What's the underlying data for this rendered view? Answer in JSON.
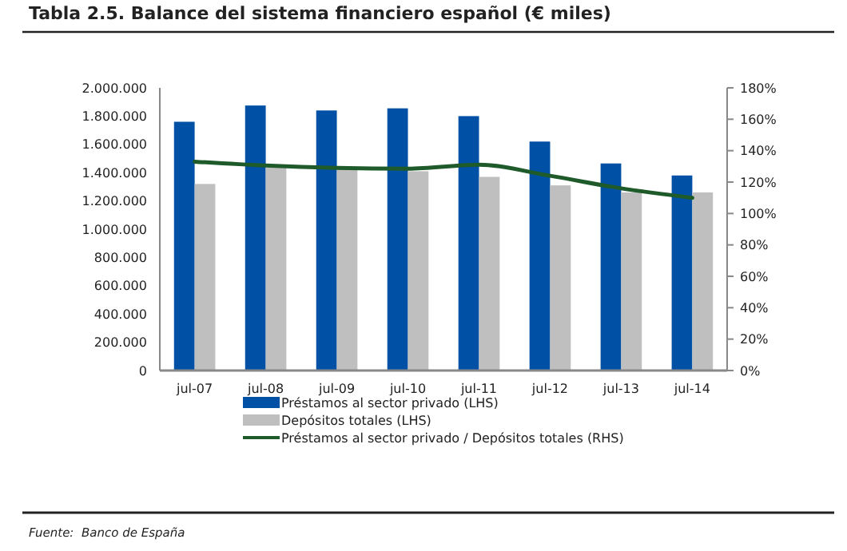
{
  "chart_data": {
    "type": "bar",
    "title": "Tabla 2.5.  Balance del sistema financiero español (€ miles)",
    "categories": [
      "jul-07",
      "jul-08",
      "jul-09",
      "jul-10",
      "jul-11",
      "jul-12",
      "jul-13",
      "jul-14"
    ],
    "series": [
      {
        "name": "Préstamos al sector privado (LHS)",
        "color": "#0051a5",
        "values": [
          1760000,
          1875000,
          1840000,
          1855000,
          1800000,
          1620000,
          1465000,
          1380000
        ]
      },
      {
        "name": "Depósitos totales (LHS)",
        "color": "#bfbfbf",
        "values": [
          1320000,
          1435000,
          1425000,
          1410000,
          1370000,
          1310000,
          1260000,
          1260000
        ]
      },
      {
        "name": "Préstamos al sector privado / Depósitos totales (RHS)",
        "type": "line",
        "axis": "y2",
        "color": "#1e5a2a",
        "values": [
          133,
          130.5,
          129,
          128.5,
          131,
          124,
          116,
          110
        ]
      }
    ],
    "ylim": [
      0,
      2000000
    ],
    "yticks": [
      {
        "value": 0,
        "label": "0"
      },
      {
        "value": 200000,
        "label": "200.000"
      },
      {
        "value": 400000,
        "label": "400.000"
      },
      {
        "value": 600000,
        "label": "600.000"
      },
      {
        "value": 800000,
        "label": "800.000"
      },
      {
        "value": 1000000,
        "label": "1.000.000"
      },
      {
        "value": 1200000,
        "label": "1.200.000"
      },
      {
        "value": 1400000,
        "label": "1.400.000"
      },
      {
        "value": 1600000,
        "label": "1.600.000"
      },
      {
        "value": 1800000,
        "label": "1.800.000"
      },
      {
        "value": 2000000,
        "label": "2.000.000"
      }
    ],
    "y2lim": [
      0,
      180
    ],
    "y2ticks": [
      {
        "value": 0,
        "label": "0%"
      },
      {
        "value": 20,
        "label": "20%"
      },
      {
        "value": 40,
        "label": "40%"
      },
      {
        "value": 60,
        "label": "60%"
      },
      {
        "value": 80,
        "label": "80%"
      },
      {
        "value": 100,
        "label": "100%"
      },
      {
        "value": 120,
        "label": "120%"
      },
      {
        "value": 140,
        "label": "140%"
      },
      {
        "value": 160,
        "label": "160%"
      },
      {
        "value": 180,
        "label": "180%"
      }
    ],
    "legend": "bottom",
    "annotations": [
      "Fuente:  Banco de España"
    ]
  }
}
